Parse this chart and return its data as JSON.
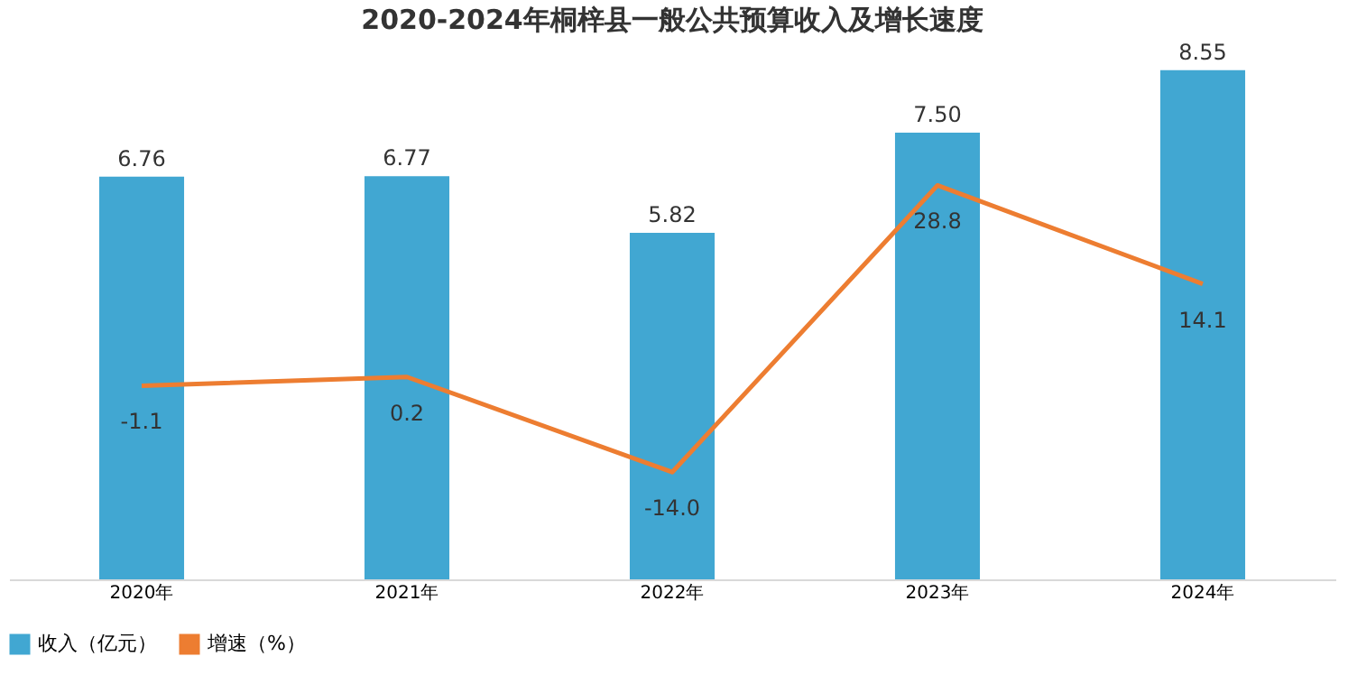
{
  "chart_data": {
    "type": "bar",
    "title": "2020-2024年桐梓县一般公共预算收入及增长速度",
    "categories": [
      "2020年",
      "2021年",
      "2022年",
      "2023年",
      "2024年"
    ],
    "series": [
      {
        "name": "收入（亿元）",
        "color": "#41a7d2",
        "values": [
          6.76,
          6.77,
          5.82,
          7.5,
          8.55
        ],
        "value_labels": [
          "6.76",
          "6.77",
          "5.82",
          "7.50",
          "8.55"
        ]
      },
      {
        "name": "增速（%）",
        "type": "line",
        "axis": "y2",
        "color": "#ed7d31",
        "values": [
          -1.1,
          0.2,
          -14.0,
          28.8,
          14.1
        ],
        "value_labels": [
          "-1.1",
          "0.2",
          "-14.0",
          "28.8",
          "14.1"
        ]
      }
    ],
    "legend": "bottom",
    "grid": false,
    "marker": "none",
    "line_style": "solid",
    "tick_labels": "x"
  }
}
